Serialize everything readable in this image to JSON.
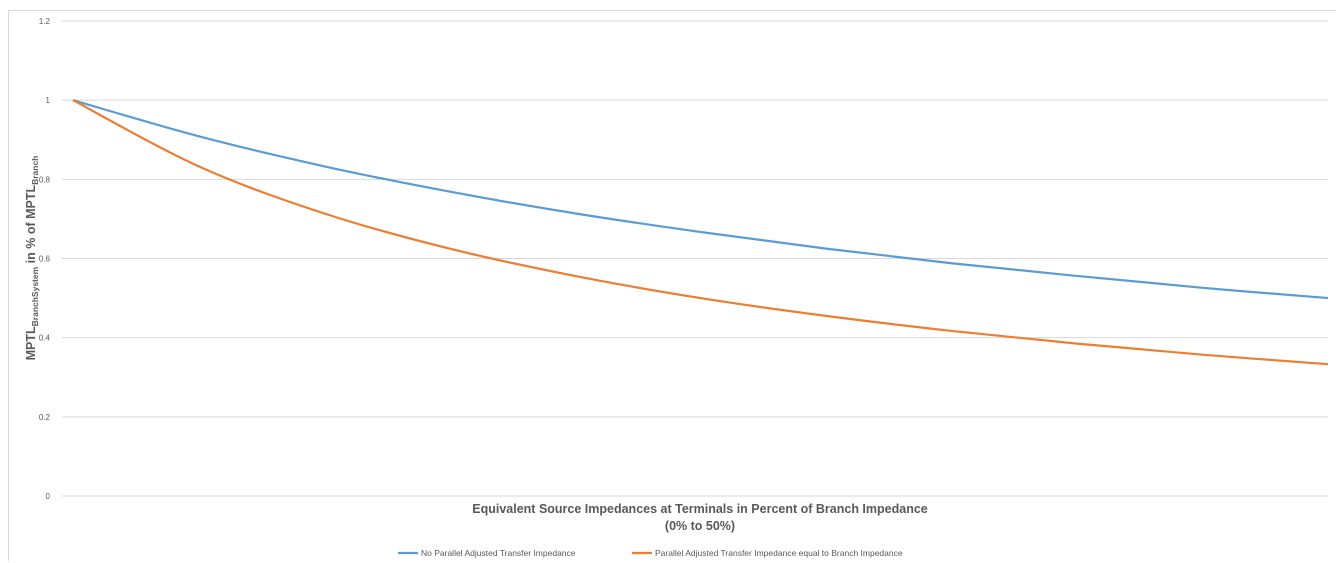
{
  "chart_data": {
    "type": "line",
    "xlabel": "Equivalent Source Impedances at Terminals in Percent of Branch Impedance",
    "xlabel_line2": "(0% to 50%)",
    "ylabel": {
      "main": "MPTL",
      "sub1": "BranchSystem",
      "middle": " in % of MPTL",
      "sub2": "Branch"
    },
    "ylim": [
      0,
      1.2
    ],
    "yticks": [
      "0",
      "0.2",
      "0.4",
      "0.6",
      "0.8",
      "1",
      "1.2"
    ],
    "grid": true,
    "legend_position": "bottom",
    "x": [
      0,
      5,
      10,
      15,
      20,
      25,
      30,
      35,
      40,
      45,
      50
    ],
    "series": [
      {
        "name": "No Parallel Adjusted Transfer Impedance",
        "color": "#5b9bd5",
        "values": [
          1.0,
          0.909,
          0.833,
          0.769,
          0.714,
          0.667,
          0.625,
          0.588,
          0.556,
          0.526,
          0.5
        ]
      },
      {
        "name": "Parallel Adjusted Transfer Impedance equal to Branch Impedance",
        "color": "#ed7d31",
        "values": [
          1.0,
          0.833,
          0.714,
          0.625,
          0.556,
          0.5,
          0.455,
          0.417,
          0.385,
          0.357,
          0.333
        ]
      }
    ]
  }
}
